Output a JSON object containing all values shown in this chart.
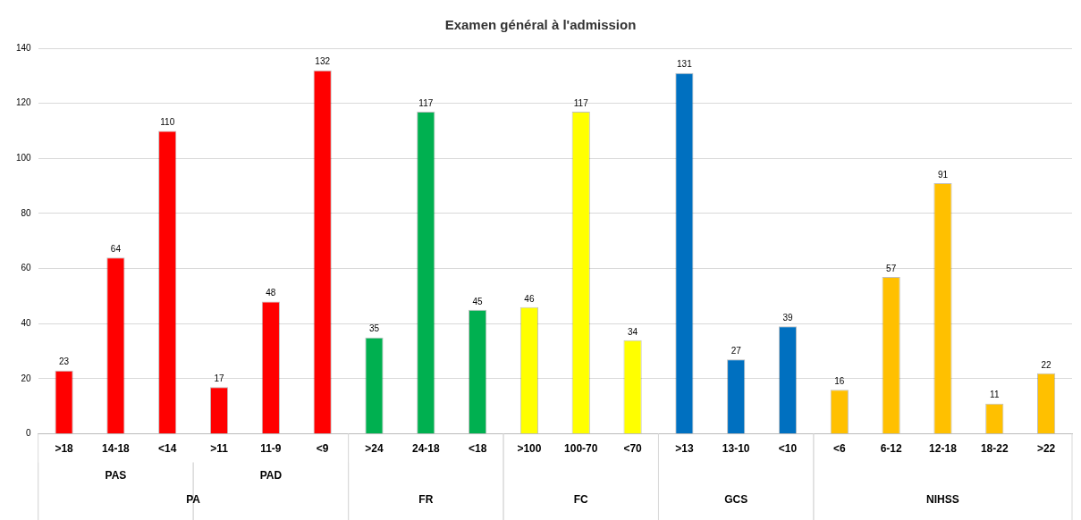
{
  "chart_data": {
    "type": "bar",
    "title": "Examen général à l'admission",
    "categories": [
      ">18",
      "14-18",
      "<14",
      ">11",
      "11-9",
      "<9",
      ">24",
      "24-18",
      "<18",
      ">100",
      "100-70",
      "<70",
      ">13",
      "13-10",
      "<10",
      "<6",
      "6-12",
      "12-18",
      "18-22",
      ">22"
    ],
    "values": [
      23,
      64,
      110,
      17,
      48,
      132,
      35,
      117,
      45,
      46,
      117,
      34,
      131,
      27,
      39,
      16,
      57,
      91,
      11,
      22
    ],
    "colors": [
      "#ff0000",
      "#ff0000",
      "#ff0000",
      "#ff0000",
      "#ff0000",
      "#ff0000",
      "#00b050",
      "#00b050",
      "#00b050",
      "#ffff00",
      "#ffff00",
      "#ffff00",
      "#0070c0",
      "#0070c0",
      "#0070c0",
      "#ffc000",
      "#ffc000",
      "#ffc000",
      "#ffc000",
      "#ffc000"
    ],
    "annotations": [
      "PAS",
      "PAD",
      "PA",
      "FR",
      "FC",
      "GCS",
      "NIHSS"
    ],
    "ylim": [
      0,
      140
    ],
    "yticks": [
      0,
      20,
      40,
      60,
      80,
      100,
      120,
      140
    ],
    "grid": "y",
    "data_labels": true,
    "legend": false
  }
}
